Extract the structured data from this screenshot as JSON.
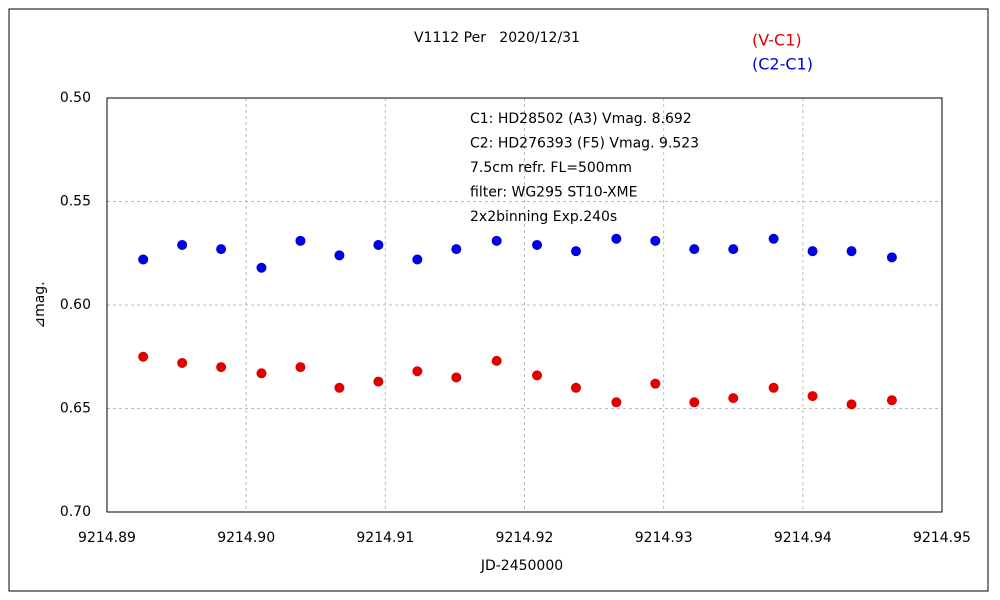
{
  "chart_data": {
    "type": "scatter",
    "title": "V1112 Per   2020/12/31",
    "xlabel": "JD-2450000",
    "ylabel": "⊿mag.",
    "annotations": [
      "C1: HD28502 (A3) Vmag. 8.692",
      "C2: HD276393 (F5) Vmag. 9.523",
      "7.5cm refr. FL=500mm",
      "filter: WG295  ST10-XME",
      "2x2binning  Exp.240s"
    ],
    "x": [
      9214.8926,
      9214.8954,
      9214.8982,
      9214.9011,
      9214.9039,
      9214.9067,
      9214.9095,
      9214.9123,
      9214.9151,
      9214.918,
      9214.9209,
      9214.9237,
      9214.9266,
      9214.9294,
      9214.9322,
      9214.935,
      9214.9379,
      9214.9407,
      9214.9435,
      9214.9464
    ],
    "series": [
      {
        "name": "(V-C1)",
        "color": "#e00000",
        "values": [
          0.625,
          0.628,
          0.63,
          0.633,
          0.63,
          0.64,
          0.637,
          0.632,
          0.635,
          0.627,
          0.634,
          0.64,
          0.647,
          0.638,
          0.647,
          0.645,
          0.64,
          0.644,
          0.648,
          0.646
        ]
      },
      {
        "name": "(C2-C1)",
        "color": "#0000e0",
        "values": [
          0.578,
          0.571,
          0.573,
          0.582,
          0.569,
          0.576,
          0.571,
          0.578,
          0.573,
          0.569,
          0.571,
          0.574,
          0.568,
          0.569,
          0.573,
          0.573,
          0.568,
          0.574,
          0.574,
          0.577
        ]
      }
    ],
    "xlim": [
      9214.89,
      9214.95
    ],
    "xticks": [
      9214.89,
      {
        "value": 9214.9,
        "label": "9214.90"
      },
      9214.91,
      9214.92,
      9214.93,
      9214.94,
      9214.95
    ],
    "ylim": [
      0.5,
      0.7
    ],
    "y_inverted": true,
    "yticks": [
      {
        "value": 0.5,
        "label": "0.50"
      },
      0.55,
      {
        "value": 0.6,
        "label": "0.60"
      },
      0.65,
      {
        "value": 0.7,
        "label": "0.70"
      }
    ],
    "grid": true,
    "legend": "top-right"
  }
}
